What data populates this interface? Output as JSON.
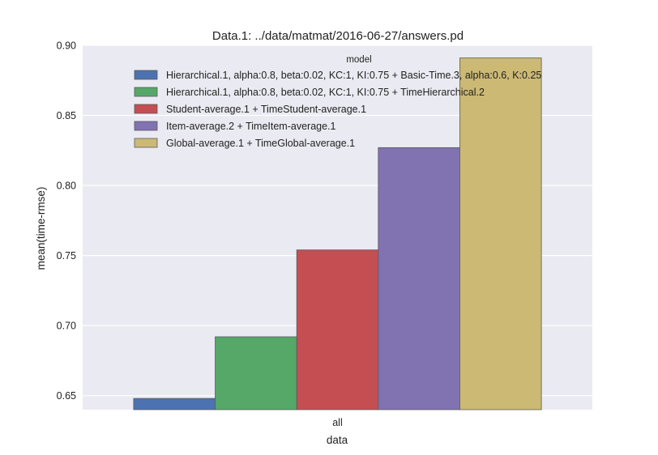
{
  "chart_data": {
    "type": "bar",
    "title": "Data.1: ../data/matmat/2016-06-27/answers.pd",
    "xlabel": "data",
    "ylabel": "mean(time-rmse)",
    "categories": [
      "all"
    ],
    "ylim": [
      0.64,
      0.9
    ],
    "yticks": [
      "0.65",
      "0.70",
      "0.75",
      "0.80",
      "0.85",
      "0.90"
    ],
    "grid": true,
    "legend_title": "model",
    "legend_position": "top-right",
    "series": [
      {
        "name": "Hierarchical.1, alpha:0.8, beta:0.02, KC:1, KI:0.75 + Basic-Time.3, alpha:0.6, K:0.25",
        "values": [
          0.648
        ],
        "color": "#4C72B0"
      },
      {
        "name": "Hierarchical.1, alpha:0.8, beta:0.02, KC:1, KI:0.75 + TimeHierarchical.2",
        "values": [
          0.692
        ],
        "color": "#55A868"
      },
      {
        "name": "Student-average.1 + TimeStudent-average.1",
        "values": [
          0.754
        ],
        "color": "#C44E52"
      },
      {
        "name": "Item-average.2 + TimeItem-average.1",
        "values": [
          0.827
        ],
        "color": "#8172B2"
      },
      {
        "name": "Global-average.1 + TimeGlobal-average.1",
        "values": [
          0.891
        ],
        "color": "#CCB974"
      }
    ]
  }
}
